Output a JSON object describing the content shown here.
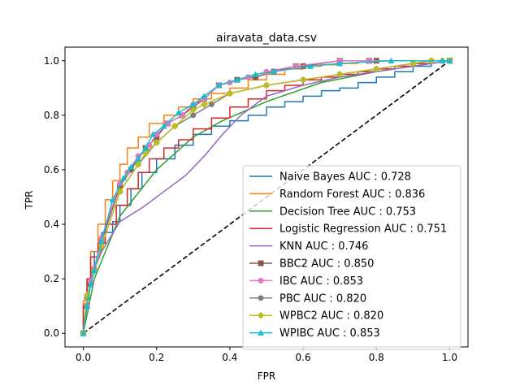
{
  "chart_data": {
    "type": "line",
    "title": "airavata_data.csv",
    "xlabel": "FPR",
    "ylabel": "TPR",
    "xlim": [
      -0.05,
      1.05
    ],
    "ylim": [
      -0.05,
      1.05
    ],
    "xticks": [
      "0.0",
      "0.2",
      "0.4",
      "0.6",
      "0.8",
      "1.0"
    ],
    "yticks": [
      "0.0",
      "0.2",
      "0.4",
      "0.6",
      "0.8",
      "1.0"
    ],
    "grid": false,
    "legend_position": "lower-right",
    "diagonal": {
      "x": [
        0,
        1
      ],
      "y": [
        0,
        1
      ],
      "color": "#000000",
      "style": "dashed"
    },
    "series": [
      {
        "name": "Naive Bayes AUC : 0.728",
        "color": "#1f77b4",
        "marker": "none",
        "step": true,
        "x": [
          0,
          0.01,
          0.02,
          0.03,
          0.05,
          0.08,
          0.1,
          0.13,
          0.16,
          0.2,
          0.25,
          0.3,
          0.35,
          0.4,
          0.45,
          0.5,
          0.55,
          0.6,
          0.65,
          0.7,
          0.75,
          0.8,
          0.85,
          0.9,
          0.95,
          1.0
        ],
        "y": [
          0,
          0.1,
          0.18,
          0.23,
          0.3,
          0.37,
          0.41,
          0.47,
          0.53,
          0.59,
          0.64,
          0.69,
          0.73,
          0.76,
          0.78,
          0.8,
          0.83,
          0.85,
          0.87,
          0.89,
          0.9,
          0.92,
          0.94,
          0.96,
          0.98,
          1.0
        ]
      },
      {
        "name": "Random Forest AUC : 0.836",
        "color": "#ff7f0e",
        "marker": "none",
        "step": true,
        "x": [
          0,
          0.01,
          0.02,
          0.04,
          0.06,
          0.08,
          0.1,
          0.12,
          0.15,
          0.18,
          0.22,
          0.26,
          0.3,
          0.35,
          0.4,
          0.45,
          0.5,
          0.55,
          0.6,
          0.65,
          0.7,
          0.75,
          0.8,
          0.85,
          0.9,
          0.95,
          1.0
        ],
        "y": [
          0,
          0.12,
          0.2,
          0.3,
          0.4,
          0.49,
          0.56,
          0.62,
          0.68,
          0.72,
          0.77,
          0.8,
          0.83,
          0.86,
          0.88,
          0.9,
          0.93,
          0.95,
          0.97,
          0.98,
          0.985,
          0.99,
          0.995,
          1.0,
          1.0,
          1.0,
          1.0
        ]
      },
      {
        "name": "Decision Tree AUC : 0.753",
        "color": "#2ca02c",
        "marker": "none",
        "step": false,
        "x": [
          0,
          0.03,
          0.1,
          0.2,
          0.3,
          0.38,
          0.5,
          0.65,
          0.8,
          1.0
        ],
        "y": [
          0,
          0.2,
          0.43,
          0.6,
          0.72,
          0.78,
          0.85,
          0.92,
          0.96,
          1.0
        ]
      },
      {
        "name": "Logistic Regression AUC : 0.751",
        "color": "#d62728",
        "marker": "none",
        "step": true,
        "x": [
          0,
          0.01,
          0.02,
          0.04,
          0.06,
          0.09,
          0.12,
          0.15,
          0.18,
          0.22,
          0.26,
          0.3,
          0.35,
          0.4,
          0.45,
          0.5,
          0.55,
          0.6,
          0.65,
          0.7,
          0.75,
          0.8,
          0.85,
          0.9,
          0.95,
          1.0
        ],
        "y": [
          0,
          0.1,
          0.2,
          0.28,
          0.33,
          0.4,
          0.47,
          0.53,
          0.59,
          0.64,
          0.68,
          0.71,
          0.75,
          0.79,
          0.83,
          0.86,
          0.89,
          0.91,
          0.93,
          0.94,
          0.95,
          0.96,
          0.97,
          0.98,
          0.99,
          1.0
        ]
      },
      {
        "name": "KNN AUC : 0.746",
        "color": "#9467bd",
        "marker": "none",
        "step": false,
        "x": [
          0,
          0.02,
          0.05,
          0.1,
          0.16,
          0.22,
          0.28,
          0.33,
          0.38,
          0.43,
          0.5,
          0.6,
          0.7,
          0.8,
          0.9,
          1.0
        ],
        "y": [
          0,
          0.2,
          0.3,
          0.41,
          0.46,
          0.52,
          0.58,
          0.65,
          0.73,
          0.8,
          0.87,
          0.91,
          0.94,
          0.96,
          0.98,
          1.0
        ]
      },
      {
        "name": "BBC2 AUC : 0.850",
        "color": "#8c564b",
        "marker": "square",
        "step": false,
        "x": [
          0,
          0.01,
          0.02,
          0.03,
          0.05,
          0.1,
          0.13,
          0.17,
          0.2,
          0.23,
          0.27,
          0.3,
          0.33,
          0.37,
          0.42,
          0.47,
          0.52,
          0.58,
          0.6,
          0.7,
          0.78,
          0.8,
          1.0
        ],
        "y": [
          0,
          0.1,
          0.18,
          0.23,
          0.34,
          0.54,
          0.6,
          0.68,
          0.72,
          0.77,
          0.8,
          0.83,
          0.86,
          0.91,
          0.93,
          0.94,
          0.96,
          0.98,
          0.98,
          1.0,
          1.0,
          1.0,
          1.0
        ]
      },
      {
        "name": "IBC AUC : 0.853",
        "color": "#e377c2",
        "marker": "circle",
        "step": false,
        "x": [
          0,
          0.01,
          0.02,
          0.03,
          0.05,
          0.1,
          0.12,
          0.15,
          0.18,
          0.2,
          0.23,
          0.27,
          0.3,
          0.33,
          0.37,
          0.4,
          0.45,
          0.5,
          0.58,
          0.7,
          0.78,
          0.95,
          1.0
        ],
        "y": [
          0,
          0.1,
          0.19,
          0.24,
          0.35,
          0.55,
          0.59,
          0.65,
          0.69,
          0.73,
          0.77,
          0.8,
          0.84,
          0.86,
          0.91,
          0.92,
          0.94,
          0.96,
          0.98,
          1.0,
          1.0,
          1.0,
          1.0
        ]
      },
      {
        "name": "PBC AUC : 0.820",
        "color": "#7f7f7f",
        "marker": "circle",
        "step": false,
        "x": [
          0,
          0.01,
          0.03,
          0.05,
          0.1,
          0.15,
          0.2,
          0.25,
          0.3,
          0.35,
          0.4,
          0.5,
          0.6,
          0.7,
          0.8,
          0.9,
          0.95,
          1.0
        ],
        "y": [
          0,
          0.13,
          0.23,
          0.32,
          0.52,
          0.62,
          0.7,
          0.76,
          0.8,
          0.84,
          0.88,
          0.91,
          0.93,
          0.95,
          0.97,
          0.99,
          1.0,
          1.0
        ]
      },
      {
        "name": "WPBC2 AUC : 0.820",
        "color": "#bcbd22",
        "marker": "diamond",
        "step": false,
        "x": [
          0,
          0.01,
          0.03,
          0.05,
          0.1,
          0.15,
          0.17,
          0.2,
          0.25,
          0.3,
          0.33,
          0.4,
          0.5,
          0.6,
          0.7,
          0.8,
          0.9,
          0.95,
          0.98,
          1.0
        ],
        "y": [
          0,
          0.14,
          0.23,
          0.32,
          0.52,
          0.62,
          0.66,
          0.7,
          0.76,
          0.82,
          0.84,
          0.88,
          0.91,
          0.93,
          0.95,
          0.97,
          0.99,
          1.0,
          1.0,
          1.0
        ]
      },
      {
        "name": "WPIBC AUC : 0.853",
        "color": "#17becf",
        "marker": "triangle",
        "step": false,
        "x": [
          0,
          0.01,
          0.02,
          0.03,
          0.05,
          0.08,
          0.11,
          0.13,
          0.15,
          0.17,
          0.19,
          0.22,
          0.26,
          0.3,
          0.33,
          0.37,
          0.42,
          0.47,
          0.52,
          0.62,
          0.7,
          0.84,
          0.98,
          1.0
        ],
        "y": [
          0,
          0.1,
          0.18,
          0.23,
          0.34,
          0.49,
          0.57,
          0.61,
          0.64,
          0.68,
          0.73,
          0.76,
          0.81,
          0.84,
          0.87,
          0.91,
          0.93,
          0.95,
          0.96,
          0.98,
          0.99,
          1.0,
          1.0,
          1.0
        ]
      }
    ]
  }
}
